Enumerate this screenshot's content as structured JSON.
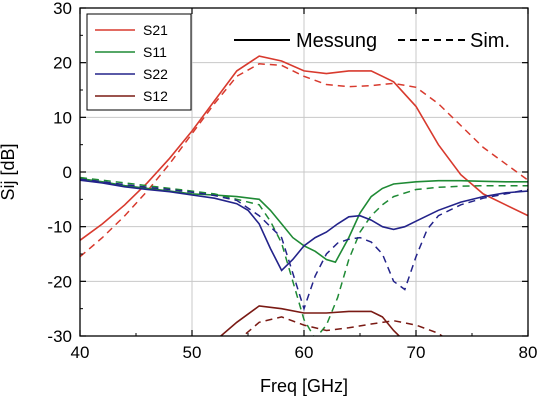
{
  "chart_data": {
    "type": "line",
    "xlabel": "Freq [GHz]",
    "ylabel": "Sij [dB]",
    "xlim": [
      40,
      80
    ],
    "ylim": [
      -30,
      30
    ],
    "x_ticks": [
      40,
      50,
      60,
      70,
      80
    ],
    "y_ticks": [
      -30,
      -20,
      -10,
      0,
      10,
      20,
      30
    ],
    "grid": true,
    "legend_position": "top-left",
    "style_legend": [
      {
        "label": "Messung",
        "dash": "solid"
      },
      {
        "label": "Sim.",
        "dash": "dashed"
      }
    ],
    "series": [
      {
        "name": "S21",
        "color": "#d83a2e",
        "measured": [
          [
            40,
            -12.5
          ],
          [
            42,
            -9.5
          ],
          [
            44,
            -6
          ],
          [
            46,
            -2
          ],
          [
            48,
            2.5
          ],
          [
            50,
            7.5
          ],
          [
            52,
            13
          ],
          [
            54,
            18.5
          ],
          [
            56,
            21.2
          ],
          [
            58,
            20.3
          ],
          [
            60,
            18.5
          ],
          [
            62,
            18
          ],
          [
            64,
            18.5
          ],
          [
            66,
            18.5
          ],
          [
            68,
            16.5
          ],
          [
            70,
            12
          ],
          [
            72,
            5
          ],
          [
            74,
            -0.5
          ],
          [
            76,
            -4
          ],
          [
            78,
            -6
          ],
          [
            80,
            -8
          ]
        ],
        "simulated": [
          [
            40,
            -15.5
          ],
          [
            42,
            -12
          ],
          [
            44,
            -8
          ],
          [
            46,
            -3.5
          ],
          [
            48,
            1.5
          ],
          [
            50,
            7
          ],
          [
            52,
            12.5
          ],
          [
            54,
            17.5
          ],
          [
            56,
            19.8
          ],
          [
            58,
            19.5
          ],
          [
            60,
            17.5
          ],
          [
            62,
            16
          ],
          [
            64,
            15.6
          ],
          [
            66,
            15.8
          ],
          [
            68,
            16.2
          ],
          [
            70,
            15.5
          ],
          [
            72,
            12.5
          ],
          [
            74,
            8.5
          ],
          [
            76,
            4.5
          ],
          [
            78,
            1.5
          ],
          [
            80,
            -1.5
          ]
        ]
      },
      {
        "name": "S11",
        "color": "#1f8a35",
        "measured": [
          [
            40,
            -1.2
          ],
          [
            42,
            -1.8
          ],
          [
            44,
            -2.5
          ],
          [
            46,
            -3
          ],
          [
            48,
            -3.5
          ],
          [
            50,
            -4
          ],
          [
            52,
            -4.2
          ],
          [
            54,
            -4.5
          ],
          [
            56,
            -5
          ],
          [
            57,
            -7
          ],
          [
            58,
            -9.5
          ],
          [
            59,
            -12
          ],
          [
            60,
            -13.5
          ],
          [
            61,
            -14.5
          ],
          [
            62,
            -16
          ],
          [
            62.8,
            -16.5
          ],
          [
            64,
            -12
          ],
          [
            65,
            -7.5
          ],
          [
            66,
            -4.5
          ],
          [
            67,
            -3
          ],
          [
            68,
            -2.2
          ],
          [
            70,
            -1.8
          ],
          [
            72,
            -1.6
          ],
          [
            74,
            -1.6
          ],
          [
            76,
            -1.7
          ],
          [
            78,
            -1.8
          ],
          [
            80,
            -1.8
          ]
        ],
        "simulated": [
          [
            40,
            -1
          ],
          [
            42,
            -1.5
          ],
          [
            44,
            -2
          ],
          [
            46,
            -2.5
          ],
          [
            48,
            -3
          ],
          [
            50,
            -3.5
          ],
          [
            52,
            -4
          ],
          [
            54,
            -5
          ],
          [
            56,
            -6
          ],
          [
            57,
            -9
          ],
          [
            58,
            -13
          ],
          [
            59,
            -20
          ],
          [
            60,
            -27
          ],
          [
            61,
            -30.5
          ],
          [
            62,
            -28
          ],
          [
            63,
            -23
          ],
          [
            64,
            -16
          ],
          [
            65,
            -11
          ],
          [
            66,
            -8
          ],
          [
            67,
            -6
          ],
          [
            68,
            -4.5
          ],
          [
            70,
            -3.2
          ],
          [
            72,
            -2.8
          ],
          [
            74,
            -2.6
          ],
          [
            76,
            -2.5
          ],
          [
            78,
            -2.5
          ],
          [
            80,
            -2.5
          ]
        ]
      },
      {
        "name": "S22",
        "color": "#23238a",
        "measured": [
          [
            40,
            -1.5
          ],
          [
            42,
            -2
          ],
          [
            44,
            -2.7
          ],
          [
            46,
            -3.2
          ],
          [
            48,
            -3.6
          ],
          [
            50,
            -4.2
          ],
          [
            52,
            -4.8
          ],
          [
            54,
            -5.8
          ],
          [
            55,
            -7
          ],
          [
            56,
            -9.5
          ],
          [
            57,
            -14
          ],
          [
            58,
            -18
          ],
          [
            59,
            -16
          ],
          [
            60,
            -13.5
          ],
          [
            61,
            -12
          ],
          [
            62,
            -11
          ],
          [
            63,
            -9.5
          ],
          [
            64,
            -8.2
          ],
          [
            65,
            -8
          ],
          [
            66,
            -8.8
          ],
          [
            67,
            -10
          ],
          [
            68,
            -10.5
          ],
          [
            69,
            -10
          ],
          [
            70,
            -9
          ],
          [
            72,
            -7
          ],
          [
            74,
            -5.5
          ],
          [
            76,
            -4.5
          ],
          [
            78,
            -3.8
          ],
          [
            80,
            -3.5
          ]
        ],
        "simulated": [
          [
            40,
            -1.3
          ],
          [
            42,
            -1.8
          ],
          [
            44,
            -2.3
          ],
          [
            46,
            -2.8
          ],
          [
            48,
            -3.2
          ],
          [
            50,
            -3.7
          ],
          [
            52,
            -4.3
          ],
          [
            54,
            -5.2
          ],
          [
            56,
            -8
          ],
          [
            58,
            -12
          ],
          [
            60,
            -25
          ],
          [
            61,
            -19
          ],
          [
            62,
            -15
          ],
          [
            63,
            -13
          ],
          [
            64,
            -12.3
          ],
          [
            65,
            -12
          ],
          [
            66,
            -12.8
          ],
          [
            67,
            -15
          ],
          [
            68,
            -20
          ],
          [
            69,
            -21.5
          ],
          [
            70,
            -15.5
          ],
          [
            71,
            -10.5
          ],
          [
            72,
            -8
          ],
          [
            74,
            -6
          ],
          [
            76,
            -4.8
          ],
          [
            78,
            -4
          ],
          [
            80,
            -3.2
          ]
        ]
      },
      {
        "name": "S12",
        "color": "#7a1a14",
        "measured": [
          [
            52,
            -31
          ],
          [
            54,
            -27.5
          ],
          [
            56,
            -24.5
          ],
          [
            58,
            -25
          ],
          [
            60,
            -25.8
          ],
          [
            62,
            -25.8
          ],
          [
            64,
            -25.5
          ],
          [
            66,
            -25.5
          ],
          [
            67,
            -26.5
          ],
          [
            68,
            -29
          ],
          [
            69,
            -31
          ]
        ],
        "simulated": [
          [
            54,
            -31
          ],
          [
            56,
            -27.5
          ],
          [
            58,
            -26.5
          ],
          [
            60,
            -28
          ],
          [
            62,
            -29
          ],
          [
            64,
            -28.5
          ],
          [
            66,
            -27.8
          ],
          [
            68,
            -27.2
          ],
          [
            70,
            -28
          ],
          [
            72,
            -29.5
          ],
          [
            73,
            -31
          ]
        ]
      }
    ]
  }
}
